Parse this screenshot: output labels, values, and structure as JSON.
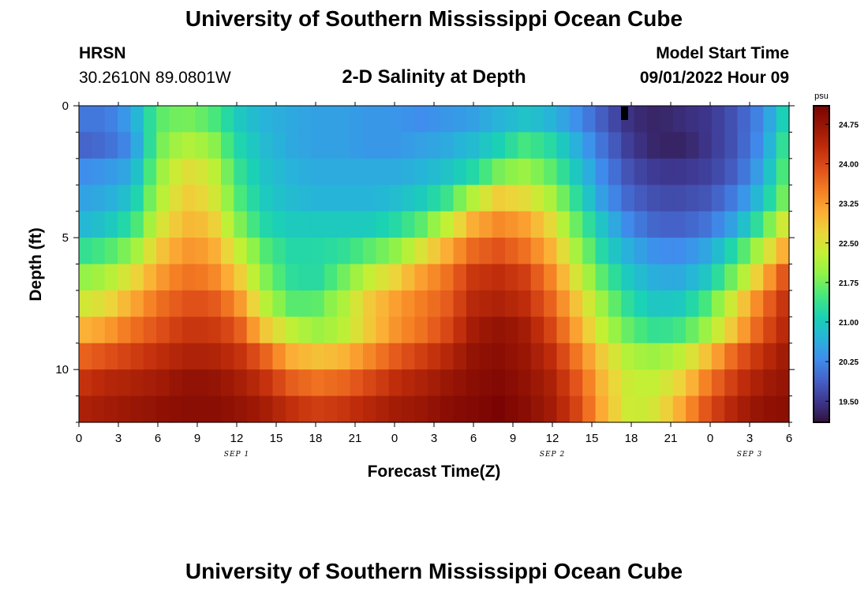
{
  "header": {
    "title_top": "University of Southern Mississippi Ocean Cube",
    "station": "HRSN",
    "coordinates": "30.2610N  89.0801W",
    "plot_title": "2-D Salinity at Depth",
    "model_label": "Model Start Time",
    "model_time": "09/01/2022 Hour 09",
    "title_bottom": "University of Southern Mississippi Ocean Cube"
  },
  "chart_data": {
    "type": "heatmap",
    "title": "2-D Salinity at Depth",
    "xlabel": "Forecast Time(Z)",
    "ylabel": "Depth (ft)",
    "units": "psu",
    "x_range_hours": [
      0,
      54
    ],
    "y_range_ft": [
      0,
      12
    ],
    "x_tick_labels": [
      "0",
      "3",
      "6",
      "9",
      "12",
      "15",
      "18",
      "21",
      "0",
      "3",
      "6",
      "9",
      "12",
      "15",
      "18",
      "21",
      "0",
      "3",
      "6"
    ],
    "y_tick_labels": [
      "0",
      "5",
      "10"
    ],
    "date_labels": [
      {
        "label": "SEP 1",
        "hour": 12
      },
      {
        "label": "SEP 2",
        "hour": 36
      },
      {
        "label": "SEP 3",
        "hour": 51
      }
    ],
    "colorbar_ticks": [
      "19.50",
      "20.25",
      "21.00",
      "21.75",
      "22.50",
      "23.25",
      "24.00",
      "24.75"
    ],
    "colorbar_range": [
      19.1,
      25.1
    ],
    "depth_bins": 12,
    "time_steps": 55,
    "depth_ft": [
      0.5,
      1.5,
      2.5,
      3.5,
      4.5,
      5.5,
      6.5,
      7.5,
      8.5,
      9.5,
      10.5,
      11.5
    ],
    "time_keyframes_hours": [
      0,
      2,
      4,
      6,
      8,
      10,
      12,
      14,
      16,
      18,
      20,
      22,
      24,
      26,
      28,
      30,
      32,
      34,
      36,
      38,
      40,
      42,
      44,
      46,
      48,
      50,
      52,
      54
    ],
    "salinity_keyframes": [
      [
        20.1,
        20.1,
        20.5,
        21.6,
        21.8,
        21.6,
        21.0,
        20.7,
        20.6,
        20.5,
        20.5,
        20.4,
        20.4,
        20.3,
        20.4,
        20.5,
        20.7,
        20.9,
        20.7,
        20.3,
        19.8,
        19.4,
        19.3,
        19.4,
        19.5,
        19.8,
        20.3,
        21.3
      ],
      [
        19.9,
        20.0,
        20.3,
        21.7,
        22.2,
        22.0,
        21.2,
        20.8,
        20.6,
        20.5,
        20.5,
        20.4,
        20.4,
        20.5,
        20.6,
        20.8,
        21.1,
        21.5,
        21.2,
        20.6,
        20.0,
        19.5,
        19.3,
        19.3,
        19.5,
        19.8,
        20.4,
        21.6
      ],
      [
        20.3,
        20.4,
        20.6,
        21.9,
        22.6,
        22.4,
        21.4,
        20.9,
        20.7,
        20.6,
        20.6,
        20.6,
        20.6,
        20.7,
        20.9,
        21.2,
        21.8,
        22.0,
        21.6,
        20.9,
        20.2,
        19.7,
        19.5,
        19.5,
        19.6,
        19.9,
        20.6,
        21.8
      ],
      [
        20.5,
        20.6,
        20.9,
        22.1,
        22.8,
        22.6,
        21.6,
        21.0,
        20.8,
        20.7,
        20.7,
        20.7,
        20.8,
        21.0,
        21.4,
        22.2,
        22.8,
        22.6,
        22.1,
        21.2,
        20.4,
        19.9,
        19.7,
        19.7,
        19.8,
        20.2,
        20.9,
        22.0
      ],
      [
        20.7,
        20.9,
        21.3,
        22.4,
        23.0,
        22.9,
        21.9,
        21.2,
        21.0,
        21.0,
        21.0,
        21.0,
        21.2,
        21.6,
        22.3,
        23.1,
        23.4,
        23.2,
        22.6,
        21.6,
        20.8,
        20.2,
        19.9,
        19.9,
        20.1,
        20.6,
        21.5,
        22.7
      ],
      [
        21.3,
        21.5,
        21.9,
        22.8,
        23.3,
        23.2,
        22.4,
        21.6,
        21.2,
        21.2,
        21.3,
        21.6,
        21.9,
        22.5,
        23.1,
        23.7,
        23.9,
        23.6,
        23.0,
        22.0,
        21.1,
        20.6,
        20.3,
        20.3,
        20.6,
        21.3,
        22.3,
        23.3
      ],
      [
        21.9,
        22.1,
        22.6,
        23.2,
        23.6,
        23.5,
        22.9,
        21.9,
        21.3,
        21.2,
        21.7,
        22.3,
        22.7,
        23.2,
        23.6,
        24.2,
        24.3,
        24.1,
        23.4,
        22.4,
        21.5,
        20.9,
        20.6,
        20.6,
        21.0,
        21.9,
        23.0,
        24.1
      ],
      [
        22.4,
        22.6,
        23.1,
        23.6,
        23.9,
        23.9,
        23.4,
        22.3,
        21.6,
        21.6,
        22.1,
        22.8,
        23.2,
        23.5,
        23.8,
        24.4,
        24.5,
        24.3,
        23.7,
        22.8,
        21.9,
        21.2,
        20.9,
        21.0,
        21.6,
        22.6,
        23.6,
        24.4
      ],
      [
        23.0,
        23.2,
        23.6,
        23.9,
        24.2,
        24.2,
        23.9,
        22.9,
        22.3,
        22.0,
        22.2,
        22.8,
        23.3,
        23.6,
        24.0,
        24.6,
        24.8,
        24.6,
        24.0,
        23.1,
        22.2,
        21.6,
        21.3,
        21.5,
        22.1,
        23.0,
        23.9,
        24.5
      ],
      [
        23.7,
        23.9,
        24.1,
        24.3,
        24.5,
        24.5,
        24.3,
        23.8,
        23.1,
        22.9,
        23.0,
        23.4,
        23.8,
        24.1,
        24.4,
        24.8,
        24.9,
        24.7,
        24.3,
        23.5,
        22.7,
        22.1,
        22.0,
        22.3,
        23.0,
        23.8,
        24.3,
        24.7
      ],
      [
        24.2,
        24.4,
        24.5,
        24.6,
        24.8,
        24.8,
        24.6,
        24.3,
        23.8,
        23.6,
        23.7,
        24.0,
        24.3,
        24.5,
        24.7,
        24.9,
        25.0,
        24.8,
        24.5,
        23.8,
        22.9,
        22.3,
        22.3,
        22.8,
        23.6,
        24.2,
        24.6,
        24.8
      ],
      [
        24.5,
        24.6,
        24.7,
        24.8,
        24.9,
        24.9,
        24.8,
        24.6,
        24.3,
        24.1,
        24.2,
        24.4,
        24.6,
        24.7,
        24.9,
        25.0,
        25.1,
        24.9,
        24.6,
        24.0,
        23.0,
        22.3,
        22.5,
        23.2,
        24.0,
        24.5,
        24.8,
        24.9
      ]
    ]
  },
  "colors": {
    "turbo_stops": [
      "#30123b",
      "#3e378f",
      "#4562c8",
      "#3f8ded",
      "#27b4d9",
      "#1ad2b4",
      "#46e77c",
      "#8ef249",
      "#c3f034",
      "#ecd53a",
      "#fcac35",
      "#f47d23",
      "#e0511a",
      "#c02d0b",
      "#9a1705",
      "#7a0403"
    ],
    "marker": "#000000",
    "axis": "#000000"
  }
}
